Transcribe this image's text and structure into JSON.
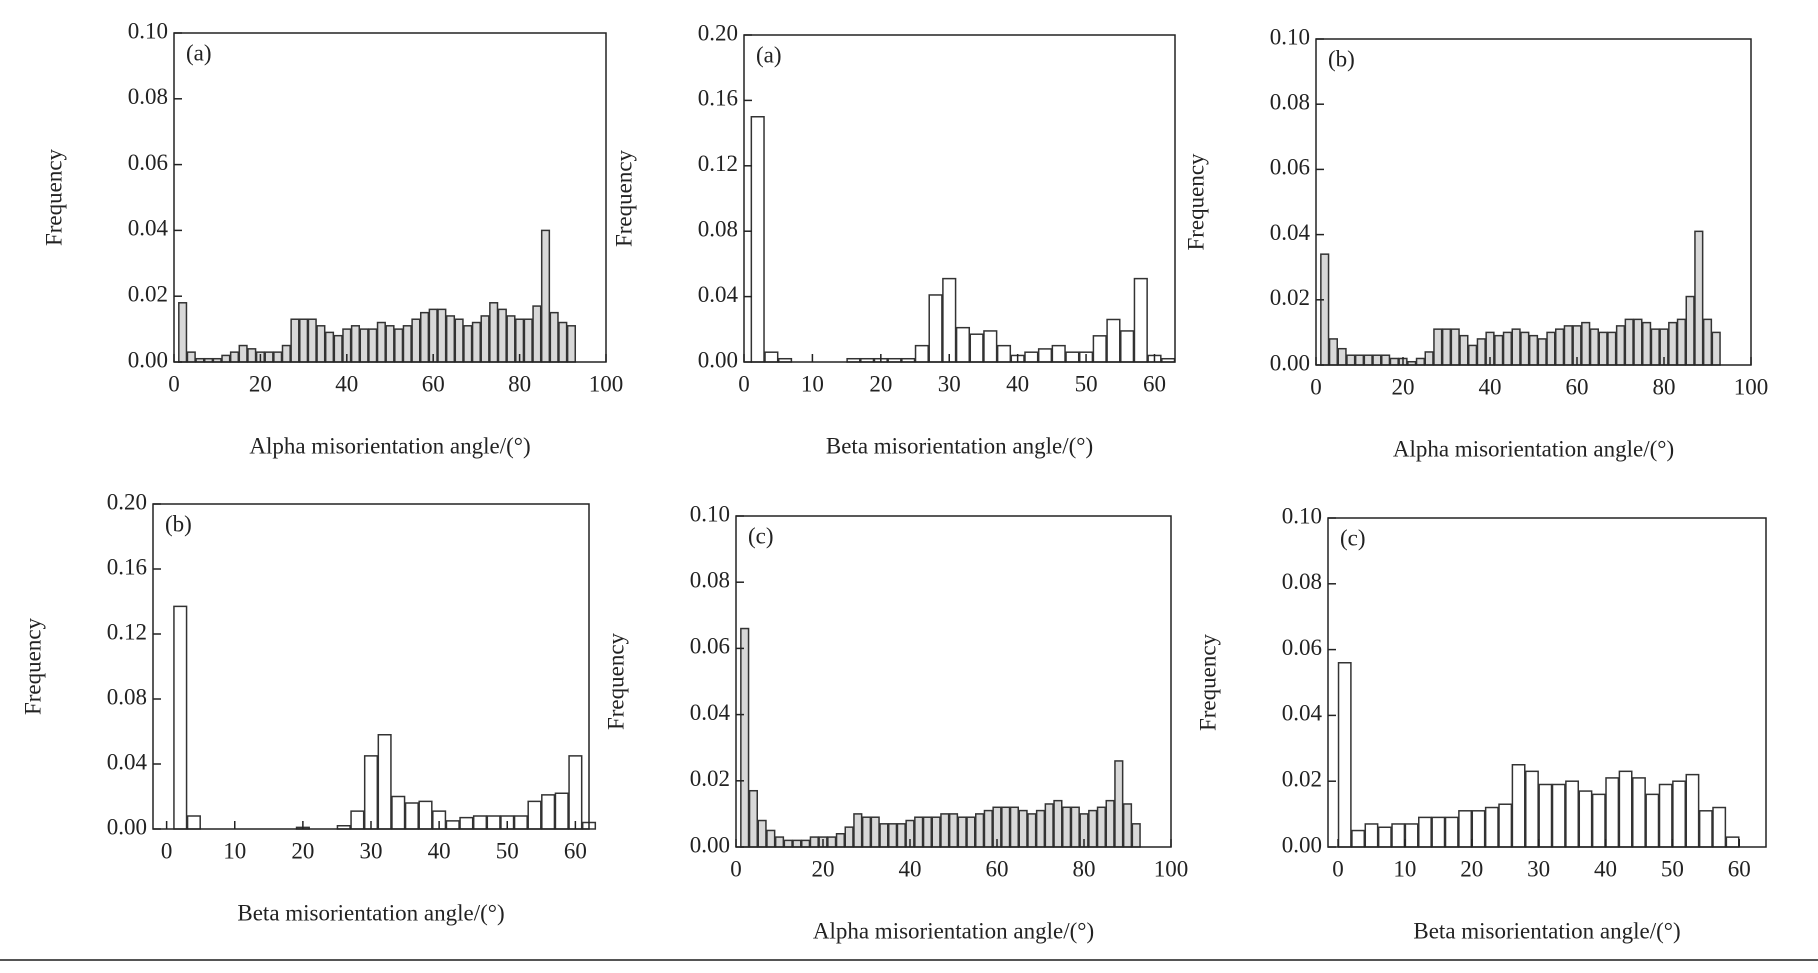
{
  "chart_data": [
    {
      "type": "histogram",
      "panel": "(a)",
      "xlabel": "Alpha misorientation angle/(°)",
      "ylabel": "Frequency",
      "bins": [
        1,
        3,
        5,
        7,
        9,
        11,
        13,
        15,
        17,
        19,
        21,
        23,
        25,
        27,
        29,
        31,
        33,
        35,
        37,
        39,
        41,
        43,
        45,
        47,
        49,
        51,
        53,
        55,
        57,
        59,
        61,
        63,
        65,
        67,
        69,
        71,
        73,
        75,
        77,
        79,
        81,
        83,
        85,
        87,
        89,
        91,
        93
      ],
      "values": [
        0.018,
        0.003,
        0.001,
        0.001,
        0.001,
        0.002,
        0.003,
        0.005,
        0.004,
        0.003,
        0.003,
        0.003,
        0.005,
        0.013,
        0.013,
        0.013,
        0.011,
        0.009,
        0.008,
        0.01,
        0.011,
        0.01,
        0.01,
        0.012,
        0.011,
        0.01,
        0.011,
        0.013,
        0.015,
        0.016,
        0.016,
        0.014,
        0.013,
        0.011,
        0.012,
        0.014,
        0.018,
        0.016,
        0.014,
        0.013,
        0.013,
        0.017,
        0.04,
        0.015,
        0.012,
        0.011
      ],
      "color": "#d8d8d8",
      "edgecolor": "#333333",
      "xlim": [
        0,
        100
      ],
      "xticks": [
        0,
        20,
        40,
        60,
        80,
        100
      ],
      "ylim": [
        0,
        0.1
      ],
      "yticks": [
        {
          "value": 0,
          "label": "0.00"
        },
        {
          "value": 0.02,
          "label": "0.02"
        },
        {
          "value": 0.04,
          "label": "0.04"
        },
        {
          "value": 0.06,
          "label": "0.06"
        },
        {
          "value": 0.08,
          "label": "0.08"
        },
        {
          "value": 0.1,
          "label": "0.10"
        }
      ]
    },
    {
      "type": "histogram",
      "panel": "(a)",
      "xlabel": "Beta misorientation angle/(°)",
      "ylabel": "Frequency",
      "bins": [
        1,
        3,
        5,
        7,
        9,
        11,
        13,
        15,
        17,
        19,
        21,
        23,
        25,
        27,
        29,
        31,
        33,
        35,
        37,
        39,
        41,
        43,
        45,
        47,
        49,
        51,
        53,
        55,
        57,
        59,
        61,
        63
      ],
      "values": [
        0.15,
        0.006,
        0.002,
        0,
        0,
        0,
        0,
        0.002,
        0.002,
        0.002,
        0.002,
        0.002,
        0.01,
        0.041,
        0.051,
        0.021,
        0.017,
        0.019,
        0.01,
        0.004,
        0.006,
        0.008,
        0.01,
        0.006,
        0.006,
        0.016,
        0.026,
        0.019,
        0.051,
        0.004,
        0.002
      ],
      "color": "#ffffff",
      "edgecolor": "#333333",
      "xlim": [
        0,
        63
      ],
      "xticks": [
        0,
        10,
        20,
        30,
        40,
        50,
        60
      ],
      "ylim": [
        0,
        0.2
      ],
      "yticks": [
        {
          "value": 0,
          "label": "0.00"
        },
        {
          "value": 0.04,
          "label": "0.04"
        },
        {
          "value": 0.08,
          "label": "0.08"
        },
        {
          "value": 0.12,
          "label": "0.12"
        },
        {
          "value": 0.16,
          "label": "0.16"
        },
        {
          "value": 0.2,
          "label": "0.20"
        }
      ]
    },
    {
      "type": "histogram",
      "panel": "(b)",
      "xlabel": "Alpha misorientation angle/(°)",
      "ylabel": "Frequency",
      "bins": [
        1,
        3,
        5,
        7,
        9,
        11,
        13,
        15,
        17,
        19,
        21,
        23,
        25,
        27,
        29,
        31,
        33,
        35,
        37,
        39,
        41,
        43,
        45,
        47,
        49,
        51,
        53,
        55,
        57,
        59,
        61,
        63,
        65,
        67,
        69,
        71,
        73,
        75,
        77,
        79,
        81,
        83,
        85,
        87,
        89,
        91,
        93
      ],
      "values": [
        0.034,
        0.008,
        0.005,
        0.003,
        0.003,
        0.003,
        0.003,
        0.003,
        0.002,
        0.002,
        0.001,
        0.002,
        0.004,
        0.011,
        0.011,
        0.011,
        0.009,
        0.006,
        0.008,
        0.01,
        0.009,
        0.01,
        0.011,
        0.01,
        0.009,
        0.008,
        0.01,
        0.011,
        0.012,
        0.012,
        0.013,
        0.011,
        0.01,
        0.01,
        0.012,
        0.014,
        0.014,
        0.013,
        0.011,
        0.011,
        0.013,
        0.014,
        0.021,
        0.041,
        0.014,
        0.01
      ],
      "color": "#d8d8d8",
      "edgecolor": "#333333",
      "xlim": [
        0,
        100
      ],
      "xticks": [
        0,
        20,
        40,
        60,
        80,
        100
      ],
      "ylim": [
        0,
        0.1
      ],
      "yticks": [
        {
          "value": 0,
          "label": "0.00"
        },
        {
          "value": 0.02,
          "label": "0.02"
        },
        {
          "value": 0.04,
          "label": "0.04"
        },
        {
          "value": 0.06,
          "label": "0.06"
        },
        {
          "value": 0.08,
          "label": "0.08"
        },
        {
          "value": 0.1,
          "label": "0.10"
        }
      ]
    },
    {
      "type": "histogram",
      "panel": "(b)",
      "xlabel": "Beta misorientation angle/(°)",
      "ylabel": "Frequency",
      "bins": [
        1,
        3,
        5,
        7,
        9,
        11,
        13,
        15,
        17,
        19,
        21,
        23,
        25,
        27,
        29,
        31,
        33,
        35,
        37,
        39,
        41,
        43,
        45,
        47,
        49,
        51,
        53,
        55,
        57,
        59,
        61,
        63
      ],
      "values": [
        0.137,
        0.008,
        0,
        0,
        0,
        0,
        0,
        0,
        0,
        0.001,
        0,
        0,
        0.002,
        0.011,
        0.045,
        0.058,
        0.02,
        0.016,
        0.017,
        0.011,
        0.005,
        0.007,
        0.008,
        0.008,
        0.008,
        0.008,
        0.017,
        0.021,
        0.022,
        0.045,
        0.004
      ],
      "color": "#ffffff",
      "edgecolor": "#333333",
      "xlim": [
        -2,
        62
      ],
      "xticks": [
        0,
        10,
        20,
        30,
        40,
        50,
        60
      ],
      "ylim": [
        0,
        0.2
      ],
      "yticks": [
        {
          "value": 0,
          "label": "0.00"
        },
        {
          "value": 0.04,
          "label": "0.04"
        },
        {
          "value": 0.08,
          "label": "0.08"
        },
        {
          "value": 0.12,
          "label": "0.12"
        },
        {
          "value": 0.16,
          "label": "0.16"
        },
        {
          "value": 0.2,
          "label": "0.20"
        }
      ]
    },
    {
      "type": "histogram",
      "panel": "(c)",
      "xlabel": "Alpha misorientation angle/(°)",
      "ylabel": "Frequency",
      "bins": [
        1,
        3,
        5,
        7,
        9,
        11,
        13,
        15,
        17,
        19,
        21,
        23,
        25,
        27,
        29,
        31,
        33,
        35,
        37,
        39,
        41,
        43,
        45,
        47,
        49,
        51,
        53,
        55,
        57,
        59,
        61,
        63,
        65,
        67,
        69,
        71,
        73,
        75,
        77,
        79,
        81,
        83,
        85,
        87,
        89,
        91,
        93
      ],
      "values": [
        0.066,
        0.017,
        0.008,
        0.005,
        0.003,
        0.002,
        0.002,
        0.002,
        0.003,
        0.003,
        0.003,
        0.004,
        0.006,
        0.01,
        0.009,
        0.009,
        0.007,
        0.007,
        0.007,
        0.008,
        0.009,
        0.009,
        0.009,
        0.01,
        0.01,
        0.009,
        0.009,
        0.01,
        0.011,
        0.012,
        0.012,
        0.012,
        0.011,
        0.01,
        0.011,
        0.013,
        0.014,
        0.012,
        0.012,
        0.01,
        0.011,
        0.012,
        0.014,
        0.026,
        0.013,
        0.007
      ],
      "color": "#d8d8d8",
      "edgecolor": "#333333",
      "xlim": [
        0,
        100
      ],
      "xticks": [
        0,
        20,
        40,
        60,
        80,
        100
      ],
      "ylim": [
        0,
        0.1
      ],
      "yticks": [
        {
          "value": 0,
          "label": "0.00"
        },
        {
          "value": 0.02,
          "label": "0.02"
        },
        {
          "value": 0.04,
          "label": "0.04"
        },
        {
          "value": 0.06,
          "label": "0.06"
        },
        {
          "value": 0.08,
          "label": "0.08"
        },
        {
          "value": 0.1,
          "label": "0.10"
        }
      ]
    },
    {
      "type": "histogram",
      "panel": "(c)",
      "xlabel": "Beta misorientation angle/(°)",
      "ylabel": "Frequency",
      "bins": [
        0,
        2,
        4,
        6,
        8,
        10,
        12,
        14,
        16,
        18,
        20,
        22,
        24,
        26,
        28,
        30,
        32,
        34,
        36,
        38,
        40,
        42,
        44,
        46,
        48,
        50,
        52,
        54,
        56,
        58,
        60
      ],
      "values": [
        0.056,
        0.005,
        0.007,
        0.006,
        0.007,
        0.007,
        0.009,
        0.009,
        0.009,
        0.011,
        0.011,
        0.012,
        0.013,
        0.025,
        0.023,
        0.019,
        0.019,
        0.02,
        0.017,
        0.016,
        0.021,
        0.023,
        0.021,
        0.016,
        0.019,
        0.02,
        0.022,
        0.011,
        0.012,
        0.003
      ],
      "color": "#ffffff",
      "edgecolor": "#333333",
      "xlim": [
        -1.5,
        64
      ],
      "xticks": [
        0,
        10,
        20,
        30,
        40,
        50,
        60
      ],
      "ylim": [
        0,
        0.1
      ],
      "yticks": [
        {
          "value": 0,
          "label": "0.00"
        },
        {
          "value": 0.02,
          "label": "0.02"
        },
        {
          "value": 0.04,
          "label": "0.04"
        },
        {
          "value": 0.06,
          "label": "0.06"
        },
        {
          "value": 0.08,
          "label": "0.08"
        },
        {
          "value": 0.1,
          "label": "0.10"
        }
      ]
    }
  ]
}
